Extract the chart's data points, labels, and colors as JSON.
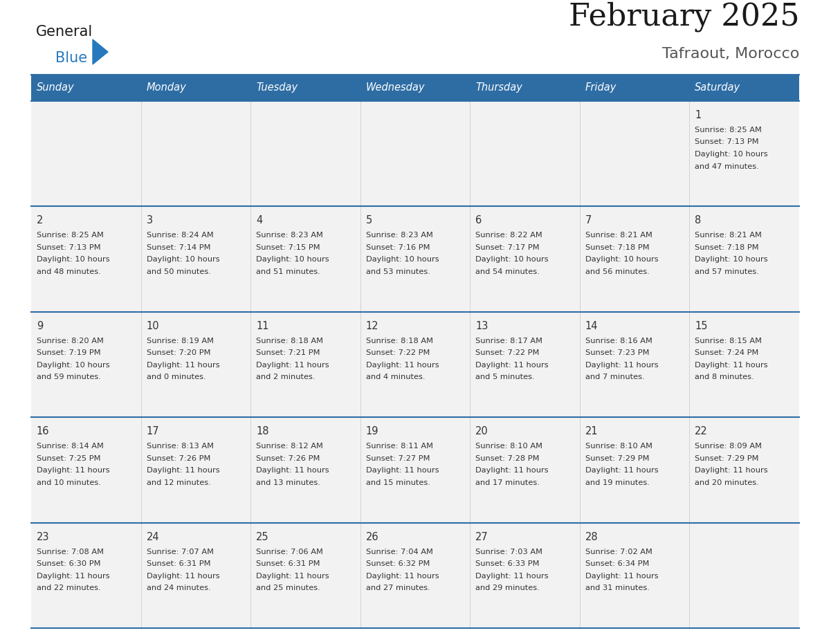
{
  "title": "February 2025",
  "subtitle": "Tafraout, Morocco",
  "days_of_week": [
    "Sunday",
    "Monday",
    "Tuesday",
    "Wednesday",
    "Thursday",
    "Friday",
    "Saturday"
  ],
  "header_bg": "#2E6DA4",
  "header_text": "#FFFFFF",
  "cell_bg": "#F2F2F2",
  "divider_color": "#2E6DA4",
  "text_color": "#333333",
  "title_color": "#1a1a1a",
  "subtitle_color": "#555555",
  "logo_general_color": "#1a1a1a",
  "logo_blue_color": "#2779BD",
  "calendar_data": [
    [
      null,
      null,
      null,
      null,
      null,
      null,
      {
        "day": 1,
        "sunrise": "8:25 AM",
        "sunset": "7:13 PM",
        "daylight_l1": "Daylight: 10 hours",
        "daylight_l2": "and 47 minutes."
      }
    ],
    [
      {
        "day": 2,
        "sunrise": "8:25 AM",
        "sunset": "7:13 PM",
        "daylight_l1": "Daylight: 10 hours",
        "daylight_l2": "and 48 minutes."
      },
      {
        "day": 3,
        "sunrise": "8:24 AM",
        "sunset": "7:14 PM",
        "daylight_l1": "Daylight: 10 hours",
        "daylight_l2": "and 50 minutes."
      },
      {
        "day": 4,
        "sunrise": "8:23 AM",
        "sunset": "7:15 PM",
        "daylight_l1": "Daylight: 10 hours",
        "daylight_l2": "and 51 minutes."
      },
      {
        "day": 5,
        "sunrise": "8:23 AM",
        "sunset": "7:16 PM",
        "daylight_l1": "Daylight: 10 hours",
        "daylight_l2": "and 53 minutes."
      },
      {
        "day": 6,
        "sunrise": "8:22 AM",
        "sunset": "7:17 PM",
        "daylight_l1": "Daylight: 10 hours",
        "daylight_l2": "and 54 minutes."
      },
      {
        "day": 7,
        "sunrise": "8:21 AM",
        "sunset": "7:18 PM",
        "daylight_l1": "Daylight: 10 hours",
        "daylight_l2": "and 56 minutes."
      },
      {
        "day": 8,
        "sunrise": "8:21 AM",
        "sunset": "7:18 PM",
        "daylight_l1": "Daylight: 10 hours",
        "daylight_l2": "and 57 minutes."
      }
    ],
    [
      {
        "day": 9,
        "sunrise": "8:20 AM",
        "sunset": "7:19 PM",
        "daylight_l1": "Daylight: 10 hours",
        "daylight_l2": "and 59 minutes."
      },
      {
        "day": 10,
        "sunrise": "8:19 AM",
        "sunset": "7:20 PM",
        "daylight_l1": "Daylight: 11 hours",
        "daylight_l2": "and 0 minutes."
      },
      {
        "day": 11,
        "sunrise": "8:18 AM",
        "sunset": "7:21 PM",
        "daylight_l1": "Daylight: 11 hours",
        "daylight_l2": "and 2 minutes."
      },
      {
        "day": 12,
        "sunrise": "8:18 AM",
        "sunset": "7:22 PM",
        "daylight_l1": "Daylight: 11 hours",
        "daylight_l2": "and 4 minutes."
      },
      {
        "day": 13,
        "sunrise": "8:17 AM",
        "sunset": "7:22 PM",
        "daylight_l1": "Daylight: 11 hours",
        "daylight_l2": "and 5 minutes."
      },
      {
        "day": 14,
        "sunrise": "8:16 AM",
        "sunset": "7:23 PM",
        "daylight_l1": "Daylight: 11 hours",
        "daylight_l2": "and 7 minutes."
      },
      {
        "day": 15,
        "sunrise": "8:15 AM",
        "sunset": "7:24 PM",
        "daylight_l1": "Daylight: 11 hours",
        "daylight_l2": "and 8 minutes."
      }
    ],
    [
      {
        "day": 16,
        "sunrise": "8:14 AM",
        "sunset": "7:25 PM",
        "daylight_l1": "Daylight: 11 hours",
        "daylight_l2": "and 10 minutes."
      },
      {
        "day": 17,
        "sunrise": "8:13 AM",
        "sunset": "7:26 PM",
        "daylight_l1": "Daylight: 11 hours",
        "daylight_l2": "and 12 minutes."
      },
      {
        "day": 18,
        "sunrise": "8:12 AM",
        "sunset": "7:26 PM",
        "daylight_l1": "Daylight: 11 hours",
        "daylight_l2": "and 13 minutes."
      },
      {
        "day": 19,
        "sunrise": "8:11 AM",
        "sunset": "7:27 PM",
        "daylight_l1": "Daylight: 11 hours",
        "daylight_l2": "and 15 minutes."
      },
      {
        "day": 20,
        "sunrise": "8:10 AM",
        "sunset": "7:28 PM",
        "daylight_l1": "Daylight: 11 hours",
        "daylight_l2": "and 17 minutes."
      },
      {
        "day": 21,
        "sunrise": "8:10 AM",
        "sunset": "7:29 PM",
        "daylight_l1": "Daylight: 11 hours",
        "daylight_l2": "and 19 minutes."
      },
      {
        "day": 22,
        "sunrise": "8:09 AM",
        "sunset": "7:29 PM",
        "daylight_l1": "Daylight: 11 hours",
        "daylight_l2": "and 20 minutes."
      }
    ],
    [
      {
        "day": 23,
        "sunrise": "7:08 AM",
        "sunset": "6:30 PM",
        "daylight_l1": "Daylight: 11 hours",
        "daylight_l2": "and 22 minutes."
      },
      {
        "day": 24,
        "sunrise": "7:07 AM",
        "sunset": "6:31 PM",
        "daylight_l1": "Daylight: 11 hours",
        "daylight_l2": "and 24 minutes."
      },
      {
        "day": 25,
        "sunrise": "7:06 AM",
        "sunset": "6:31 PM",
        "daylight_l1": "Daylight: 11 hours",
        "daylight_l2": "and 25 minutes."
      },
      {
        "day": 26,
        "sunrise": "7:04 AM",
        "sunset": "6:32 PM",
        "daylight_l1": "Daylight: 11 hours",
        "daylight_l2": "and 27 minutes."
      },
      {
        "day": 27,
        "sunrise": "7:03 AM",
        "sunset": "6:33 PM",
        "daylight_l1": "Daylight: 11 hours",
        "daylight_l2": "and 29 minutes."
      },
      {
        "day": 28,
        "sunrise": "7:02 AM",
        "sunset": "6:34 PM",
        "daylight_l1": "Daylight: 11 hours",
        "daylight_l2": "and 31 minutes."
      },
      null
    ]
  ]
}
